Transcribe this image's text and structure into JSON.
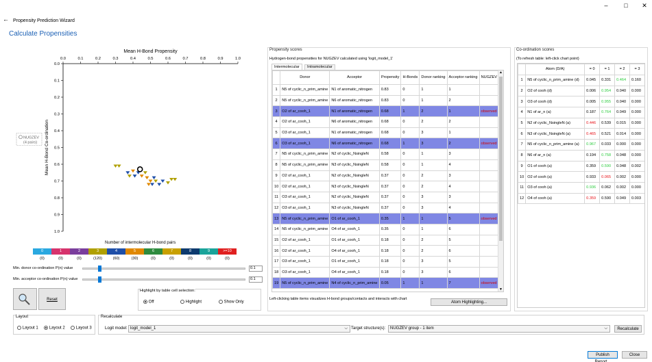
{
  "window": {
    "title": "Propensity Prediction Wizard",
    "heading": "Calculate Propensities"
  },
  "chart_data": {
    "type": "scatter",
    "xlabel": "Mean H-Bond Propensity",
    "ylabel": "Mean H-Bond Co-ordination",
    "x_ticks": [
      "0.0",
      "0.1",
      "0.2",
      "0.3",
      "0.4",
      "0.5",
      "0.6",
      "0.7",
      "0.8",
      "0.9",
      "1.0"
    ],
    "y_ticks": [
      "0.0",
      "0.1",
      "0.2",
      "0.3",
      "0.4",
      "0.5",
      "0.6",
      "0.7",
      "0.8",
      "0.9",
      "1.0"
    ],
    "xlim": [
      0,
      1
    ],
    "ylim": [
      0,
      1
    ],
    "target": {
      "label_line1": "NUGZEV",
      "label_line2": "(4 pairs)",
      "x": 0.44,
      "y": 0.63
    },
    "points": [
      {
        "x": 0.3,
        "y": 0.61,
        "color": "#b0a000"
      },
      {
        "x": 0.32,
        "y": 0.61,
        "color": "#b0a000"
      },
      {
        "x": 0.37,
        "y": 0.65,
        "color": "#1f4fa8"
      },
      {
        "x": 0.38,
        "y": 0.67,
        "color": "#b0a000"
      },
      {
        "x": 0.4,
        "y": 0.64,
        "color": "#e08800"
      },
      {
        "x": 0.41,
        "y": 0.67,
        "color": "#1f4fa8"
      },
      {
        "x": 0.43,
        "y": 0.65,
        "color": "#1f4fa8"
      },
      {
        "x": 0.45,
        "y": 0.67,
        "color": "#e08800"
      },
      {
        "x": 0.47,
        "y": 0.65,
        "color": "#b0a000"
      },
      {
        "x": 0.48,
        "y": 0.68,
        "color": "#e08800"
      },
      {
        "x": 0.5,
        "y": 0.7,
        "color": "#e08800"
      },
      {
        "x": 0.51,
        "y": 0.72,
        "color": "#1f4fa8"
      },
      {
        "x": 0.53,
        "y": 0.7,
        "color": "#b0a000"
      },
      {
        "x": 0.55,
        "y": 0.72,
        "color": "#1f4fa8"
      },
      {
        "x": 0.57,
        "y": 0.7,
        "color": "#1f4fa8"
      },
      {
        "x": 0.6,
        "y": 0.71,
        "color": "#b0a000"
      },
      {
        "x": 0.62,
        "y": 0.69,
        "color": "#b0a000"
      },
      {
        "x": 0.64,
        "y": 0.69,
        "color": "#b0a000"
      },
      {
        "x": 0.52,
        "y": 0.68,
        "color": "#1f4fa8"
      },
      {
        "x": 0.49,
        "y": 0.72,
        "color": "#e08800"
      }
    ],
    "legend_title": "Number of intermolecular H-bond pairs",
    "legend": [
      {
        "label": "0",
        "color": "#2aa8e0",
        "count": "(0)"
      },
      {
        "label": "1",
        "color": "#d6336c",
        "count": "(0)"
      },
      {
        "label": "2",
        "color": "#7a3e9d",
        "count": "(0)"
      },
      {
        "label": "3",
        "color": "#b0a000",
        "count": "(120)"
      },
      {
        "label": "4",
        "color": "#1f4fa8",
        "count": "(60)"
      },
      {
        "label": "5",
        "color": "#e08800",
        "count": "(30)"
      },
      {
        "label": "6",
        "color": "#2e8b3e",
        "count": "(0)"
      },
      {
        "label": "7",
        "color": "#c8a000",
        "count": "(0)"
      },
      {
        "label": "8",
        "color": "#0d3a6e",
        "count": "(0)"
      },
      {
        "label": "9",
        "color": "#1aa39a",
        "count": "(0)"
      },
      {
        "label": ">=10",
        "color": "#e02020",
        "count": "(0)"
      }
    ]
  },
  "sliders": {
    "donor_label": "Min. donor co-ordination P(n) value",
    "donor_value": "0.1",
    "donor_level": 0.1,
    "acceptor_label": "Min. acceptor co-ordination P(n) value",
    "acceptor_value": "0.1",
    "acceptor_level": 0.1
  },
  "buttons": {
    "reset": "Reset",
    "atom_highlighting": "Atom Highlighting...",
    "recalculate": "Recalculate",
    "publish": "Publish Report...",
    "close": "Close"
  },
  "highlight": {
    "title": "Highlight by table cell selection:",
    "options": [
      "Off",
      "Highlight",
      "Show Only"
    ],
    "selected": 0
  },
  "propensity": {
    "title": "Propensity scores",
    "caption": "Hydrogen-bond propensities for NUGZEV calculated using 'logit_model_1'",
    "tabs": [
      "Intermolecular",
      "Intramolecular"
    ],
    "columns": [
      "",
      "Donor",
      "Acceptor",
      "Propensity",
      "H-Bonds",
      "Donor ranking",
      "Acceptor ranking",
      "NUGZEV"
    ],
    "rows": [
      [
        "1",
        "N5 of cyclic_n_prim_amine",
        "N1 of aromatic_nitrogen",
        "0.83",
        "0",
        "1",
        "1",
        ""
      ],
      [
        "2",
        "N5 of cyclic_n_prim_amine",
        "N6 of aromatic_nitrogen",
        "0.83",
        "0",
        "1",
        "2",
        ""
      ],
      [
        "3",
        "O2 of ar_cooh_1",
        "N1 of aromatic_nitrogen",
        "0.68",
        "1",
        "2",
        "1",
        "observed"
      ],
      [
        "4",
        "O2 of ar_cooh_1",
        "N6 of aromatic_nitrogen",
        "0.68",
        "0",
        "2",
        "2",
        ""
      ],
      [
        "5",
        "O3 of ar_cooh_1",
        "N1 of aromatic_nitrogen",
        "0.68",
        "0",
        "3",
        "1",
        ""
      ],
      [
        "6",
        "O3 of ar_cooh_1",
        "N6 of aromatic_nitrogen",
        "0.68",
        "1",
        "3",
        "2",
        "observed"
      ],
      [
        "7",
        "N5 of cyclic_n_prim_amine",
        "N2 of cyclic_NsingleN",
        "0.58",
        "0",
        "1",
        "3",
        ""
      ],
      [
        "8",
        "N5 of cyclic_n_prim_amine",
        "N3 of cyclic_NsingleN",
        "0.58",
        "0",
        "1",
        "4",
        ""
      ],
      [
        "9",
        "O2 of ar_cooh_1",
        "N2 of cyclic_NsingleN",
        "0.37",
        "0",
        "2",
        "3",
        ""
      ],
      [
        "10",
        "O2 of ar_cooh_1",
        "N3 of cyclic_NsingleN",
        "0.37",
        "0",
        "2",
        "4",
        ""
      ],
      [
        "11",
        "O3 of ar_cooh_1",
        "N2 of cyclic_NsingleN",
        "0.37",
        "0",
        "3",
        "3",
        ""
      ],
      [
        "12",
        "O3 of ar_cooh_1",
        "N3 of cyclic_NsingleN",
        "0.37",
        "0",
        "3",
        "4",
        ""
      ],
      [
        "13",
        "N5 of cyclic_n_prim_amine",
        "O1 of ar_cooh_1",
        "0.35",
        "1",
        "1",
        "5",
        "observed"
      ],
      [
        "14",
        "N5 of cyclic_n_prim_amine",
        "O4 of ar_cooh_1",
        "0.35",
        "0",
        "1",
        "6",
        ""
      ],
      [
        "15",
        "O2 of ar_cooh_1",
        "O1 of ar_cooh_1",
        "0.18",
        "0",
        "2",
        "5",
        ""
      ],
      [
        "16",
        "O2 of ar_cooh_1",
        "O4 of ar_cooh_1",
        "0.18",
        "0",
        "2",
        "6",
        ""
      ],
      [
        "17",
        "O3 of ar_cooh_1",
        "O1 of ar_cooh_1",
        "0.18",
        "0",
        "3",
        "5",
        ""
      ],
      [
        "18",
        "O3 of ar_cooh_1",
        "O4 of ar_cooh_1",
        "0.18",
        "0",
        "3",
        "6",
        ""
      ],
      [
        "19",
        "N5 of cyclic_n_prim_amine",
        "N4 of cyclic_n_prim_amine",
        "0.05",
        "1",
        "1",
        "7",
        "observed"
      ]
    ],
    "highlighted": [
      2,
      5,
      12,
      18
    ],
    "note": "Left-clicking table items visualizes H-bond groups/contacts and interacts with chart"
  },
  "coordination": {
    "title": "Co-ordination scores",
    "caption": "(To refresh table: left-click chart point)",
    "columns": [
      "",
      "Atom (D/A)",
      "= 0",
      "= 1",
      "= 2",
      "= 3"
    ],
    "rows": [
      [
        "1",
        "N5 of cyclic_n_prim_amine (d)",
        "0.045",
        "0.331",
        "0.464",
        "0.160"
      ],
      [
        "2",
        "O2 of cooh (d)",
        "0.006",
        "0.954",
        "0.040",
        "0.000"
      ],
      [
        "3",
        "O3 of cooh (d)",
        "0.005",
        "0.955",
        "0.040",
        "0.000"
      ],
      [
        "4",
        "N1 of ar_n (a)",
        "0.187",
        "0.764",
        "0.049",
        "0.000"
      ],
      [
        "5",
        "N2 of cyclic_NsingleN (a)",
        "0.446",
        "0.539",
        "0.015",
        "0.000"
      ],
      [
        "6",
        "N3 of cyclic_NsingleN (a)",
        "0.465",
        "0.521",
        "0.014",
        "0.000"
      ],
      [
        "7",
        "N5 of cyclic_n_prim_amine (a)",
        "0.967",
        "0.033",
        "0.000",
        "0.000"
      ],
      [
        "8",
        "N6 of ar_n (a)",
        "0.194",
        "0.758",
        "0.048",
        "0.000"
      ],
      [
        "9",
        "O1 of cooh (a)",
        "0.359",
        "0.590",
        "0.048",
        "0.002"
      ],
      [
        "10",
        "O2 of cooh (a)",
        "0.933",
        "0.065",
        "0.002",
        "0.000"
      ],
      [
        "11",
        "O3 of cooh (a)",
        "0.936",
        "0.062",
        "0.002",
        "0.000"
      ],
      [
        "12",
        "O4 of cooh (a)",
        "0.359",
        "0.590",
        "0.049",
        "0.003"
      ]
    ],
    "green_cells": [
      [
        0,
        4
      ],
      [
        1,
        3
      ],
      [
        2,
        3
      ],
      [
        3,
        3
      ],
      [
        6,
        2
      ],
      [
        7,
        3
      ],
      [
        8,
        3
      ],
      [
        10,
        2
      ]
    ],
    "red_cells": [
      [
        4,
        2
      ],
      [
        5,
        2
      ],
      [
        9,
        3
      ],
      [
        11,
        2
      ]
    ]
  },
  "layout": {
    "title": "Layout",
    "options": [
      "Layout 1",
      "Layout 2",
      "Layout 3"
    ],
    "selected": 1
  },
  "recalculate": {
    "title": "Recalculate",
    "model_label": "Logit model:",
    "model_value": "logit_model_1",
    "target_label": "Target structure(s):",
    "target_value": "NUGZEV group - 1 item"
  }
}
